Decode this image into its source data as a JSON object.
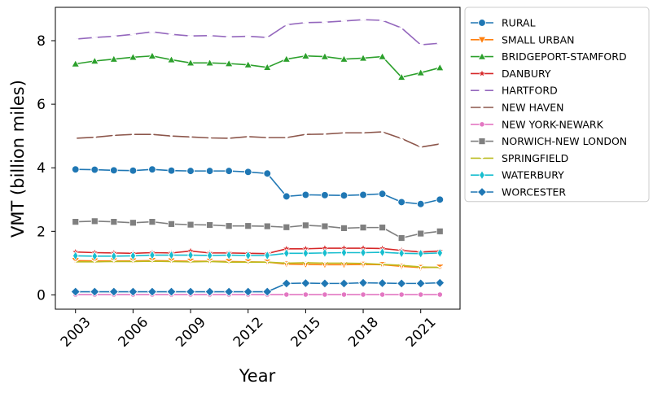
{
  "chart_data": {
    "type": "line",
    "xlabel": "Year",
    "ylabel": "VMT (billion miles)",
    "x": [
      2003,
      2004,
      2005,
      2006,
      2007,
      2008,
      2009,
      2010,
      2011,
      2012,
      2013,
      2014,
      2015,
      2016,
      2017,
      2018,
      2019,
      2020,
      2021,
      2022
    ],
    "xticks": [
      "2003",
      "2006",
      "2009",
      "2012",
      "2015",
      "2018",
      "2021"
    ],
    "yticks": [
      "0",
      "2",
      "4",
      "6",
      "8"
    ],
    "xlim": [
      2001.95,
      2023.05
    ],
    "ylim": [
      -0.45,
      9.05
    ],
    "grid": false,
    "legend_position": "outside-right",
    "series": [
      {
        "name": "RURAL",
        "color": "#1f77b4",
        "marker": "circle",
        "values": [
          3.95,
          3.94,
          3.92,
          3.91,
          3.95,
          3.91,
          3.9,
          3.9,
          3.9,
          3.87,
          3.82,
          3.1,
          3.15,
          3.14,
          3.13,
          3.15,
          3.18,
          2.92,
          2.86,
          3.0
        ]
      },
      {
        "name": "SMALL URBAN",
        "color": "#ff7f0e",
        "marker": "triangle-down",
        "values": [
          1.08,
          1.07,
          1.07,
          1.07,
          1.08,
          1.07,
          1.06,
          1.06,
          1.05,
          1.04,
          1.03,
          0.97,
          0.96,
          0.95,
          0.95,
          0.96,
          0.95,
          0.9,
          0.86,
          0.87
        ]
      },
      {
        "name": "BRIDGEPORT-STAMFORD",
        "color": "#2ca02c",
        "marker": "triangle-up",
        "values": [
          7.27,
          7.36,
          7.42,
          7.48,
          7.52,
          7.4,
          7.3,
          7.3,
          7.28,
          7.24,
          7.16,
          7.42,
          7.52,
          7.5,
          7.42,
          7.45,
          7.5,
          6.85,
          6.99,
          7.15
        ]
      },
      {
        "name": "DANBURY",
        "color": "#d62728",
        "marker": "star",
        "values": [
          1.35,
          1.33,
          1.32,
          1.31,
          1.33,
          1.32,
          1.38,
          1.32,
          1.32,
          1.31,
          1.3,
          1.45,
          1.45,
          1.47,
          1.47,
          1.47,
          1.46,
          1.4,
          1.35,
          1.38
        ]
      },
      {
        "name": "HARTFORD",
        "color": "#9467bd",
        "marker": "plus",
        "values": [
          8.05,
          8.1,
          8.14,
          8.2,
          8.28,
          8.2,
          8.15,
          8.16,
          8.12,
          8.14,
          8.1,
          8.5,
          8.57,
          8.58,
          8.62,
          8.66,
          8.64,
          8.4,
          7.87,
          7.92
        ]
      },
      {
        "name": "NEW HAVEN",
        "color": "#8c564b",
        "marker": "x",
        "values": [
          4.93,
          4.96,
          5.02,
          5.05,
          5.05,
          5.0,
          4.97,
          4.94,
          4.93,
          4.98,
          4.95,
          4.95,
          5.05,
          5.06,
          5.1,
          5.1,
          5.13,
          4.92,
          4.65,
          4.75
        ]
      },
      {
        "name": "NEW YORK-NEWARK",
        "color": "#e377c2",
        "marker": "circle-small",
        "values": [
          0.01,
          0.01,
          0.01,
          0.01,
          0.01,
          0.01,
          0.01,
          0.01,
          0.01,
          0.01,
          0.01,
          0.01,
          0.01,
          0.01,
          0.01,
          0.01,
          0.01,
          0.01,
          0.01,
          0.01
        ]
      },
      {
        "name": "NORWICH-NEW LONDON",
        "color": "#7f7f7f",
        "marker": "square",
        "values": [
          2.3,
          2.32,
          2.3,
          2.27,
          2.3,
          2.23,
          2.21,
          2.2,
          2.17,
          2.17,
          2.16,
          2.13,
          2.19,
          2.16,
          2.1,
          2.12,
          2.12,
          1.79,
          1.93,
          2.0
        ]
      },
      {
        "name": "SPRINGFIELD",
        "color": "#bcbd22",
        "marker": "tri-down",
        "values": [
          1.04,
          1.04,
          1.05,
          1.05,
          1.06,
          1.05,
          1.04,
          1.05,
          1.03,
          1.03,
          1.03,
          1.0,
          1.01,
          1.0,
          1.0,
          0.99,
          0.96,
          0.93,
          0.88,
          0.86
        ]
      },
      {
        "name": "WATERBURY",
        "color": "#17becf",
        "marker": "thin-diamond",
        "values": [
          1.23,
          1.22,
          1.22,
          1.23,
          1.25,
          1.25,
          1.25,
          1.24,
          1.25,
          1.24,
          1.24,
          1.31,
          1.31,
          1.32,
          1.33,
          1.33,
          1.34,
          1.31,
          1.3,
          1.32
        ]
      },
      {
        "name": "WORCESTER",
        "color": "#1f77b4",
        "marker": "diamond",
        "values": [
          0.1,
          0.1,
          0.1,
          0.1,
          0.1,
          0.1,
          0.1,
          0.1,
          0.1,
          0.1,
          0.1,
          0.36,
          0.37,
          0.36,
          0.36,
          0.38,
          0.37,
          0.36,
          0.36,
          0.38
        ]
      }
    ]
  }
}
